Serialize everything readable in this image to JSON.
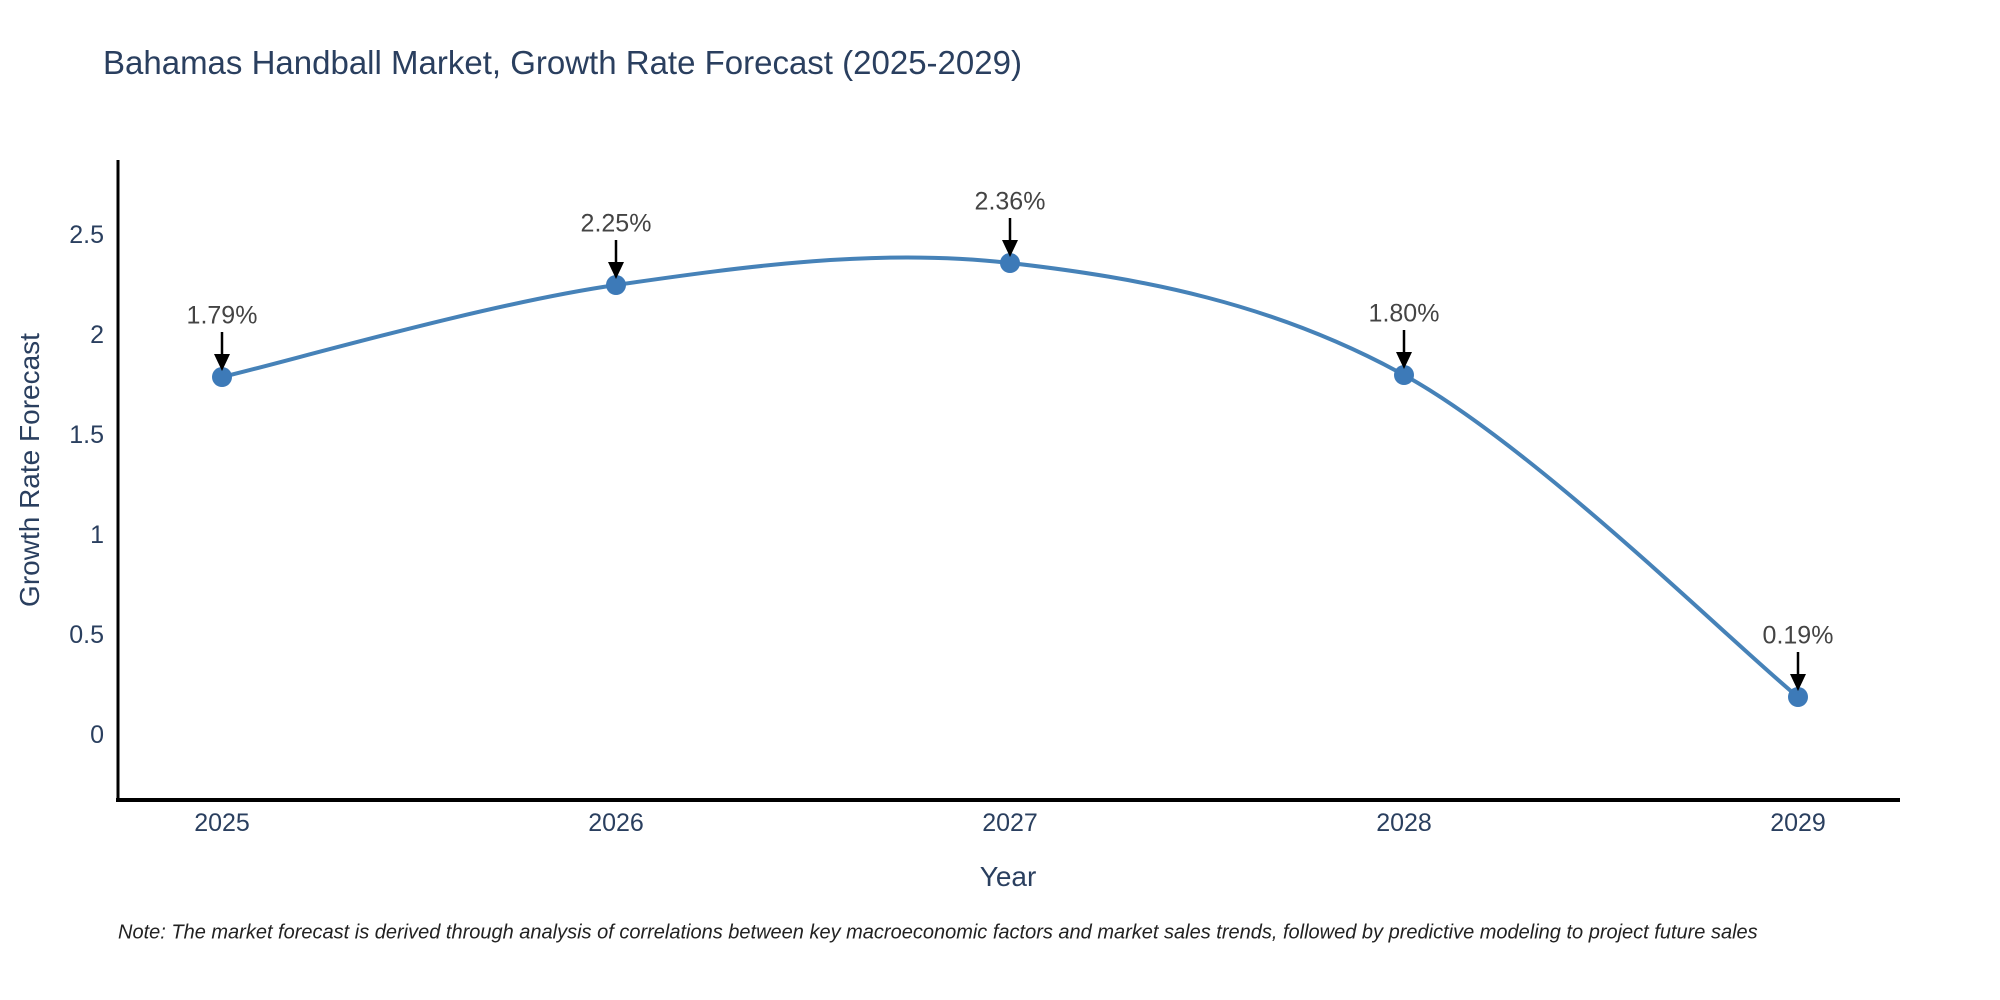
{
  "chart": {
    "title": "Bahamas Handball Market, Growth Rate Forecast (2025-2029)",
    "x_axis": {
      "title": "Year",
      "ticks": [
        "2025",
        "2026",
        "2027",
        "2028",
        "2029"
      ]
    },
    "y_axis": {
      "title": "Growth Rate Forecast",
      "ticks": [
        "0",
        "0.5",
        "1",
        "1.5",
        "2",
        "2.5"
      ]
    },
    "note": "Note: The market forecast is derived through analysis of correlations between key macroeconomic factors and market sales trends, followed by predictive modeling to project future sales",
    "colors": {
      "line": "#4682b8",
      "marker": "#3d7ab8",
      "arrow": "#000000",
      "axis": "#000000",
      "text": "#2a3f5f",
      "annotation": "#444444",
      "note_text": "#222222",
      "background": "#ffffff"
    }
  },
  "chart_data": {
    "type": "line",
    "title": "Bahamas Handball Market, Growth Rate Forecast (2025-2029)",
    "x": [
      2025,
      2026,
      2027,
      2028,
      2029
    ],
    "series": [
      {
        "name": "Growth Rate Forecast",
        "values": [
          1.79,
          2.25,
          2.36,
          1.8,
          0.19
        ]
      }
    ],
    "point_labels": [
      "1.79%",
      "2.25%",
      "2.36%",
      "1.80%",
      "0.19%"
    ],
    "xlabel": "Year",
    "ylabel": "Growth Rate Forecast",
    "ylim": [
      -0.33,
      2.88
    ],
    "yticks": [
      0,
      0.5,
      1,
      1.5,
      2,
      2.5
    ],
    "line_shape": "spline",
    "markers": true,
    "annotations_with_arrows": true,
    "grid": false,
    "legend": false
  }
}
